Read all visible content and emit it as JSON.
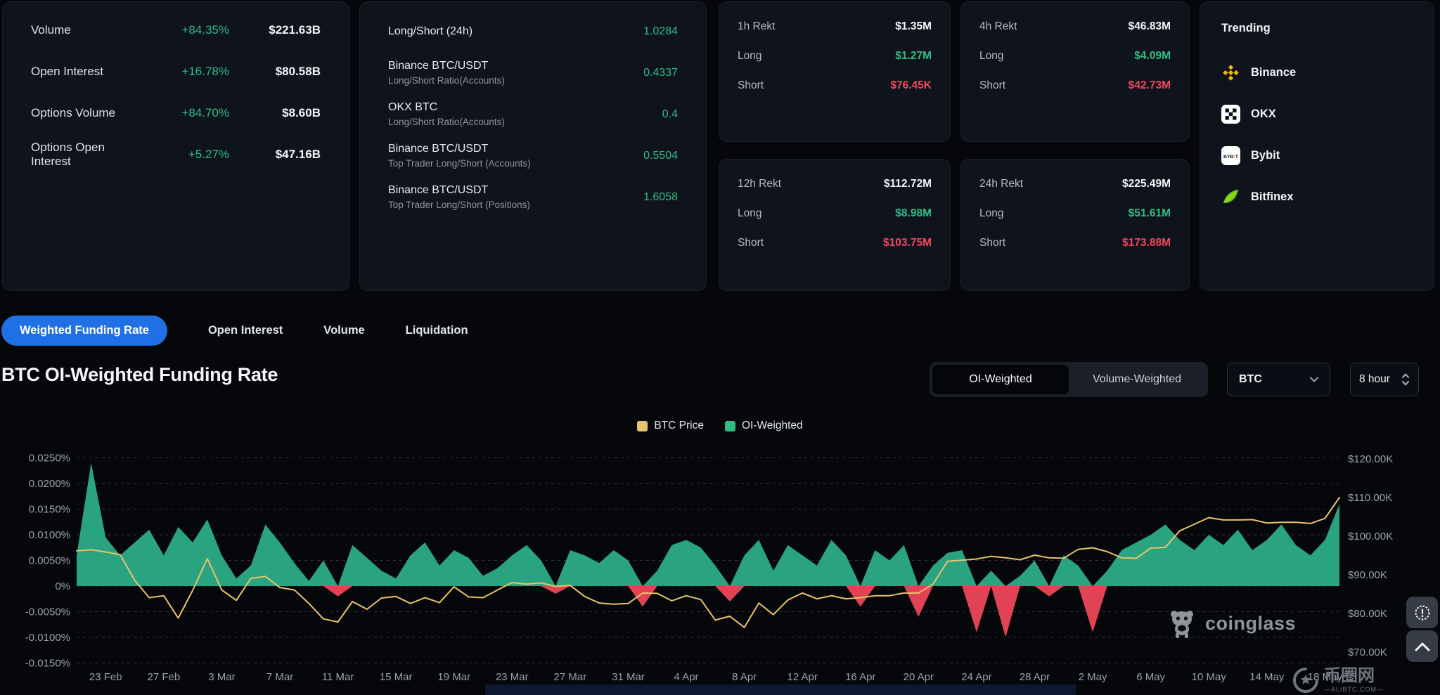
{
  "accent": {
    "green": "#2ebd85",
    "red": "#f6465d",
    "blue": "#1f6fe5",
    "orange": "#e9c26d",
    "area_green": "#2aa47f",
    "area_red": "#e04454"
  },
  "stats_panel": {
    "rows": [
      {
        "label": "Volume",
        "change": "+84.35%",
        "value": "$221.63B"
      },
      {
        "label": "Open Interest",
        "change": "+16.78%",
        "value": "$80.58B"
      },
      {
        "label": "Options Volume",
        "change": "+84.70%",
        "value": "$8.60B"
      },
      {
        "label": "Options Open Interest",
        "change": "+5.27%",
        "value": "$47.16B"
      }
    ]
  },
  "ratios_panel": {
    "rows": [
      {
        "title": "Long/Short (24h)",
        "subtitle": "",
        "value": "1.0284"
      },
      {
        "title": "Binance BTC/USDT",
        "subtitle": "Long/Short Ratio(Accounts)",
        "value": "0.4337"
      },
      {
        "title": "OKX BTC",
        "subtitle": "Long/Short Ratio(Accounts)",
        "value": "0.4"
      },
      {
        "title": "Binance BTC/USDT",
        "subtitle": "Top Trader Long/Short (Accounts)",
        "value": "0.5504"
      },
      {
        "title": "Binance BTC/USDT",
        "subtitle": "Top Trader Long/Short (Positions)",
        "value": "1.6058"
      }
    ]
  },
  "rekt_panels": [
    {
      "period": "1h Rekt",
      "total": "$1.35M",
      "long_label": "Long",
      "long_value": "$1.27M",
      "short_label": "Short",
      "short_value": "$76.45K"
    },
    {
      "period": "4h Rekt",
      "total": "$46.83M",
      "long_label": "Long",
      "long_value": "$4.09M",
      "short_label": "Short",
      "short_value": "$42.73M"
    },
    {
      "period": "12h Rekt",
      "total": "$112.72M",
      "long_label": "Long",
      "long_value": "$8.98M",
      "short_label": "Short",
      "short_value": "$103.75M"
    },
    {
      "period": "24h Rekt",
      "total": "$225.49M",
      "long_label": "Long",
      "long_value": "$51.61M",
      "short_label": "Short",
      "short_value": "$173.88M"
    }
  ],
  "trending": {
    "title": "Trending",
    "items": [
      {
        "name": "Binance",
        "icon": "binance-icon"
      },
      {
        "name": "OKX",
        "icon": "okx-icon"
      },
      {
        "name": "Bybit",
        "icon": "bybit-icon"
      },
      {
        "name": "Bitfinex",
        "icon": "bitfinex-icon"
      }
    ]
  },
  "tabs": {
    "items": [
      {
        "label": "Weighted Funding Rate",
        "active": true
      },
      {
        "label": "Open Interest",
        "active": false
      },
      {
        "label": "Volume",
        "active": false
      },
      {
        "label": "Liquidation",
        "active": false
      }
    ]
  },
  "chart_header": {
    "title": "BTC OI-Weighted Funding Rate",
    "toggle": [
      {
        "label": "OI-Weighted",
        "active": true
      },
      {
        "label": "Volume-Weighted",
        "active": false
      }
    ],
    "symbol_select": {
      "value": "BTC"
    },
    "interval_select": {
      "value": "8 hour"
    }
  },
  "watermark": {
    "brand": "coinglass"
  },
  "page_watermark": {
    "text": "币圈网",
    "sub": "—ALIBTC.COM—"
  },
  "chart_data": {
    "type": "area+line",
    "title": "BTC OI-Weighted Funding Rate",
    "legend": [
      {
        "name": "BTC Price",
        "color": "#e9c26d"
      },
      {
        "name": "OI-Weighted",
        "color": "#2ebd85"
      }
    ],
    "x_start_date": "21 Feb",
    "x_end_date": "19 May",
    "x_tick_labels": [
      "23 Feb",
      "27 Feb",
      "3 Mar",
      "7 Mar",
      "11 Mar",
      "15 Mar",
      "19 Mar",
      "23 Mar",
      "27 Mar",
      "31 Mar",
      "4 Apr",
      "8 Apr",
      "12 Apr",
      "16 Apr",
      "20 Apr",
      "24 Apr",
      "28 Apr",
      "2 May",
      "6 May",
      "10 May",
      "14 May",
      "18 May"
    ],
    "x_tick_day_indices": [
      2,
      6,
      10,
      14,
      18,
      22,
      26,
      30,
      34,
      38,
      42,
      46,
      50,
      54,
      58,
      62,
      66,
      70,
      74,
      78,
      82,
      86
    ],
    "left_axis": {
      "unit": "%",
      "ticks": [
        {
          "label": "0.0250%",
          "value": 0.025
        },
        {
          "label": "0.0200%",
          "value": 0.02
        },
        {
          "label": "0.0150%",
          "value": 0.015
        },
        {
          "label": "0.0100%",
          "value": 0.01
        },
        {
          "label": "0.0050%",
          "value": 0.005
        },
        {
          "label": "0%",
          "value": 0
        },
        {
          "label": "-0.0050%",
          "value": -0.005
        },
        {
          "label": "-0.0100%",
          "value": -0.01
        },
        {
          "label": "-0.0150%",
          "value": -0.015
        }
      ]
    },
    "right_axis": {
      "unit": "USD (K)",
      "ticks": [
        {
          "label": "$120.00K",
          "value": 120
        },
        {
          "label": "$110.00K",
          "value": 110
        },
        {
          "label": "$100.00K",
          "value": 100
        },
        {
          "label": "$90.00K",
          "value": 90
        },
        {
          "label": "$80.00K",
          "value": 80
        },
        {
          "label": "$70.00K",
          "value": 70
        }
      ]
    },
    "grid": true,
    "legend_position": "top-center",
    "series": [
      {
        "name": "OI-Weighted",
        "type": "area",
        "unit": "percent_funding_rate",
        "positive_color": "#2aa47f",
        "negative_color": "#e04454",
        "values": [
          0.006,
          0.024,
          0.0095,
          0.006,
          0.0085,
          0.011,
          0.006,
          0.0115,
          0.0085,
          0.013,
          0.006,
          0.0015,
          0.004,
          0.012,
          0.0085,
          0.0045,
          0.001,
          0.005,
          -0.002,
          0.008,
          0.0055,
          0.003,
          0.0015,
          0.006,
          0.0085,
          0.004,
          0.007,
          0.0055,
          0.002,
          0.0035,
          0.006,
          0.008,
          0.005,
          -0.0015,
          0.007,
          0.006,
          0.0045,
          0.007,
          0.005,
          -0.004,
          0.003,
          0.008,
          0.009,
          0.0075,
          0.004,
          -0.003,
          0.006,
          0.009,
          0.003,
          0.008,
          0.006,
          0.004,
          0.009,
          0.006,
          -0.004,
          0.007,
          0.005,
          0.008,
          -0.006,
          0.004,
          0.0065,
          0.007,
          -0.009,
          0.003,
          -0.01,
          0.002,
          0.005,
          -0.002,
          0.006,
          0.004,
          -0.009,
          0.003,
          0.007,
          0.0085,
          0.01,
          0.012,
          0.009,
          0.007,
          0.01,
          0.008,
          0.011,
          0.007,
          0.009,
          0.012,
          0.008,
          0.006,
          0.009,
          0.016
        ]
      },
      {
        "name": "BTC Price",
        "type": "line",
        "unit": "K_USD",
        "color": "#e9c26d",
        "values": [
          96.2,
          96.5,
          95.9,
          95.2,
          88.6,
          84.1,
          84.6,
          78.8,
          86.0,
          94.2,
          86.1,
          83.4,
          89.1,
          89.6,
          86.7,
          86.1,
          82.6,
          78.6,
          77.8,
          83.1,
          81.1,
          84.0,
          84.4,
          82.6,
          84.1,
          82.8,
          86.9,
          84.3,
          84.1,
          86.1,
          88.0,
          87.6,
          87.9,
          87.0,
          87.3,
          84.4,
          82.7,
          82.4,
          82.6,
          85.3,
          85.2,
          83.3,
          84.6,
          83.6,
          78.3,
          79.3,
          76.4,
          82.7,
          79.7,
          83.5,
          85.3,
          83.8,
          84.6,
          83.8,
          84.1,
          84.6,
          84.6,
          85.3,
          85.3,
          87.6,
          93.5,
          93.8,
          94.1,
          94.8,
          94.4,
          93.9,
          95.1,
          94.4,
          94.3,
          96.6,
          97.0,
          96.0,
          94.4,
          94.3,
          96.9,
          97.1,
          101.4,
          103.1,
          104.8,
          104.2,
          104.2,
          104.3,
          103.4,
          103.6,
          103.6,
          103.3,
          104.6,
          110.0
        ]
      }
    ]
  }
}
